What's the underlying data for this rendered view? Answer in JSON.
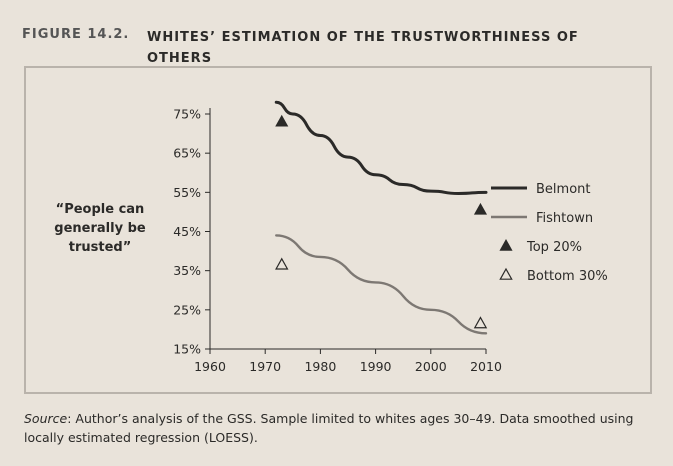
{
  "figure": {
    "label": "FIGURE 14.2.",
    "title": "WHITES’ ESTIMATION OF THE TRUSTWORTHINESS OF OTHERS"
  },
  "source": {
    "prefix": "Source",
    "text": ": Author’s analysis of the GSS. Sample limited to whites ages 30–49. Data smoothed using locally estimated regression (LOESS)."
  },
  "chart_data": {
    "type": "line",
    "ylabel": "“People can generally be trusted”",
    "xlim": [
      1960,
      2010
    ],
    "ylim": [
      15,
      75
    ],
    "x_ticks": [
      1960,
      1970,
      1980,
      1990,
      2000,
      2010
    ],
    "y_ticks": [
      75,
      65,
      55,
      45,
      35,
      25,
      15
    ],
    "y_tick_format": "%",
    "series": [
      {
        "name": "Belmont",
        "type": "line",
        "color": "#2b2a28",
        "points": [
          [
            1972,
            78
          ],
          [
            1975,
            75
          ],
          [
            1980,
            69.5
          ],
          [
            1985,
            64
          ],
          [
            1990,
            59.5
          ],
          [
            1995,
            57
          ],
          [
            2000,
            55.3
          ],
          [
            2005,
            54.7
          ],
          [
            2010,
            55
          ]
        ]
      },
      {
        "name": "Fishtown",
        "type": "line",
        "color": "#7d7873",
        "points": [
          [
            1972,
            44
          ],
          [
            1980,
            38.5
          ],
          [
            1990,
            32
          ],
          [
            2000,
            25
          ],
          [
            2010,
            19
          ]
        ]
      },
      {
        "name": "Top 20%",
        "type": "marker-filled-triangle",
        "color": "#2b2a28",
        "points": [
          [
            1973,
            73
          ],
          [
            2009,
            50.5
          ]
        ]
      },
      {
        "name": "Bottom 30%",
        "type": "marker-open-triangle",
        "color": "#2b2a28",
        "points": [
          [
            1973,
            36.5
          ],
          [
            2009,
            21.5
          ]
        ]
      }
    ],
    "legend_position": "right",
    "grid": false
  }
}
